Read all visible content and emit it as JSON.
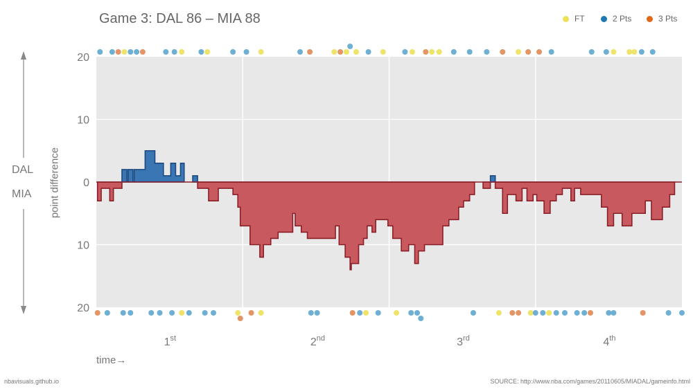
{
  "title": "Game 3: DAL 86  –  MIA 88",
  "legend": [
    {
      "label": "FT",
      "color": "#ede15a"
    },
    {
      "label": "2 Pts",
      "color": "#1f78b4"
    },
    {
      "label": "3 Pts",
      "color": "#e06a1a"
    }
  ],
  "team_top": "DAL",
  "team_bottom": "MIA",
  "ylabel": "point difference",
  "footer_left": "nbavisuals.github.io",
  "footer_right": "SOURCE: http://www.nba.com/games/20110605/MIADAL/gameinfo.html",
  "chart_data": {
    "type": "area",
    "title": "Game 3: DAL 86  –  MIA 88",
    "xlabel": "time→",
    "ylabel": "point difference",
    "quarters": [
      {
        "num": "1",
        "sup": "st"
      },
      {
        "num": "2",
        "sup": "nd"
      },
      {
        "num": "3",
        "sup": "rd"
      },
      {
        "num": "4",
        "sup": "th"
      }
    ],
    "y_ticks": [
      "20",
      "10",
      "0",
      "10",
      "20"
    ],
    "y_tick_values": [
      20,
      10,
      0,
      -10,
      -20
    ],
    "xlim": [
      0,
      48
    ],
    "ylim": [
      -20,
      20
    ],
    "grid": true,
    "colors": {
      "dal": "#3a75b4",
      "mia": "#c8595f",
      "dal_line": "#1a4a80",
      "mia_line": "#8a1f28",
      "plot_bg": "#e8e8e8"
    },
    "steps": [
      [
        0.0,
        0
      ],
      [
        0.1,
        -3
      ],
      [
        0.4,
        -1
      ],
      [
        1.1,
        -3
      ],
      [
        1.4,
        -1
      ],
      [
        2.1,
        2
      ],
      [
        2.5,
        0
      ],
      [
        2.6,
        2
      ],
      [
        3.0,
        0
      ],
      [
        3.1,
        2
      ],
      [
        4.0,
        5
      ],
      [
        4.8,
        3
      ],
      [
        5.5,
        1
      ],
      [
        6.1,
        3
      ],
      [
        6.5,
        1
      ],
      [
        6.9,
        3
      ],
      [
        7.2,
        0
      ],
      [
        7.9,
        1
      ],
      [
        8.3,
        -1
      ],
      [
        9.2,
        -3
      ],
      [
        10.0,
        -1
      ],
      [
        11.2,
        -2
      ],
      [
        11.6,
        -4
      ],
      [
        11.8,
        -7
      ],
      [
        12.6,
        -10
      ],
      [
        13.4,
        -12
      ],
      [
        13.7,
        -10
      ],
      [
        14.3,
        -9
      ],
      [
        14.9,
        -8
      ],
      [
        16.1,
        -5
      ],
      [
        16.3,
        -7
      ],
      [
        16.8,
        -8
      ],
      [
        17.3,
        -9
      ],
      [
        19.6,
        -7
      ],
      [
        19.9,
        -10
      ],
      [
        20.4,
        -12
      ],
      [
        20.8,
        -14
      ],
      [
        20.9,
        -13
      ],
      [
        21.5,
        -10
      ],
      [
        21.9,
        -9
      ],
      [
        22.2,
        -7
      ],
      [
        22.6,
        -8
      ],
      [
        22.9,
        -6
      ],
      [
        23.9,
        -7
      ],
      [
        24.3,
        -9
      ],
      [
        25.0,
        -11
      ],
      [
        25.6,
        -10
      ],
      [
        26.1,
        -13
      ],
      [
        26.4,
        -11
      ],
      [
        26.9,
        -10
      ],
      [
        28.4,
        -7
      ],
      [
        28.9,
        -6
      ],
      [
        29.7,
        -4
      ],
      [
        30.1,
        -3
      ],
      [
        30.6,
        -2
      ],
      [
        31.0,
        0
      ],
      [
        31.7,
        -1
      ],
      [
        32.3,
        1
      ],
      [
        32.7,
        -1
      ],
      [
        33.3,
        -5
      ],
      [
        33.7,
        -2
      ],
      [
        34.4,
        -3
      ],
      [
        34.9,
        -1
      ],
      [
        35.3,
        -3
      ],
      [
        35.8,
        -2
      ],
      [
        36.1,
        -3
      ],
      [
        36.7,
        -5
      ],
      [
        37.2,
        -3
      ],
      [
        37.7,
        -2
      ],
      [
        38.2,
        -1
      ],
      [
        38.9,
        -3
      ],
      [
        39.2,
        -1
      ],
      [
        39.7,
        -2
      ],
      [
        41.4,
        -4
      ],
      [
        41.9,
        -7
      ],
      [
        42.4,
        -5
      ],
      [
        43.1,
        -7
      ],
      [
        43.9,
        -5
      ],
      [
        45.0,
        -3
      ],
      [
        45.5,
        -6
      ],
      [
        46.4,
        -4
      ],
      [
        47.0,
        -2
      ],
      [
        47.4,
        0
      ],
      [
        48.0,
        -2
      ]
    ],
    "dal_scores": [
      {
        "t": 0.3,
        "pts": 2
      },
      {
        "t": 1.3,
        "pts": 2
      },
      {
        "t": 1.8,
        "pts": 3
      },
      {
        "t": 2.3,
        "pts": 1
      },
      {
        "t": 2.8,
        "pts": 2
      },
      {
        "t": 3.3,
        "pts": 2
      },
      {
        "t": 3.8,
        "pts": 3
      },
      {
        "t": 5.7,
        "pts": 2
      },
      {
        "t": 6.4,
        "pts": 2
      },
      {
        "t": 7.0,
        "pts": 1
      },
      {
        "t": 8.6,
        "pts": 2
      },
      {
        "t": 9.1,
        "pts": 1
      },
      {
        "t": 11.2,
        "pts": 2
      },
      {
        "t": 12.3,
        "pts": 2
      },
      {
        "t": 13.5,
        "pts": 1
      },
      {
        "t": 16.7,
        "pts": 2
      },
      {
        "t": 17.5,
        "pts": 3
      },
      {
        "t": 19.5,
        "pts": 1
      },
      {
        "t": 20.0,
        "pts": 3
      },
      {
        "t": 20.5,
        "pts": 1
      },
      {
        "t": 20.8,
        "pts": 2
      },
      {
        "t": 21.3,
        "pts": 1
      },
      {
        "t": 22.3,
        "pts": 2
      },
      {
        "t": 23.5,
        "pts": 1
      },
      {
        "t": 25.3,
        "pts": 2
      },
      {
        "t": 25.9,
        "pts": 1
      },
      {
        "t": 27.0,
        "pts": 3
      },
      {
        "t": 27.5,
        "pts": 1
      },
      {
        "t": 28.1,
        "pts": 1
      },
      {
        "t": 29.3,
        "pts": 2
      },
      {
        "t": 30.6,
        "pts": 2
      },
      {
        "t": 32.0,
        "pts": 2
      },
      {
        "t": 33.3,
        "pts": 3
      },
      {
        "t": 34.6,
        "pts": 1
      },
      {
        "t": 35.4,
        "pts": 3
      },
      {
        "t": 36.3,
        "pts": 3
      },
      {
        "t": 37.3,
        "pts": 2
      },
      {
        "t": 40.6,
        "pts": 2
      },
      {
        "t": 41.8,
        "pts": 2
      },
      {
        "t": 42.4,
        "pts": 1
      },
      {
        "t": 43.7,
        "pts": 1
      },
      {
        "t": 44.1,
        "pts": 1
      },
      {
        "t": 44.7,
        "pts": 2
      },
      {
        "t": 45.6,
        "pts": 2
      }
    ],
    "mia_scores": [
      {
        "t": 0.1,
        "pts": 3
      },
      {
        "t": 0.9,
        "pts": 2
      },
      {
        "t": 2.2,
        "pts": 2
      },
      {
        "t": 2.8,
        "pts": 2
      },
      {
        "t": 4.5,
        "pts": 2
      },
      {
        "t": 5.2,
        "pts": 2
      },
      {
        "t": 6.2,
        "pts": 2
      },
      {
        "t": 7.0,
        "pts": 1
      },
      {
        "t": 7.6,
        "pts": 2
      },
      {
        "t": 8.9,
        "pts": 2
      },
      {
        "t": 9.6,
        "pts": 2
      },
      {
        "t": 11.6,
        "pts": 1
      },
      {
        "t": 11.8,
        "pts": 3
      },
      {
        "t": 12.7,
        "pts": 3
      },
      {
        "t": 13.5,
        "pts": 1
      },
      {
        "t": 17.6,
        "pts": 2
      },
      {
        "t": 18.1,
        "pts": 2
      },
      {
        "t": 21.0,
        "pts": 3
      },
      {
        "t": 21.6,
        "pts": 2
      },
      {
        "t": 22.1,
        "pts": 1
      },
      {
        "t": 23.1,
        "pts": 2
      },
      {
        "t": 24.6,
        "pts": 1
      },
      {
        "t": 25.8,
        "pts": 2
      },
      {
        "t": 26.3,
        "pts": 2
      },
      {
        "t": 26.6,
        "pts": 2
      },
      {
        "t": 30.9,
        "pts": 2
      },
      {
        "t": 33.0,
        "pts": 1
      },
      {
        "t": 34.1,
        "pts": 3
      },
      {
        "t": 34.6,
        "pts": 3
      },
      {
        "t": 35.6,
        "pts": 1
      },
      {
        "t": 36.0,
        "pts": 2
      },
      {
        "t": 36.6,
        "pts": 2
      },
      {
        "t": 37.1,
        "pts": 1
      },
      {
        "t": 37.7,
        "pts": 2
      },
      {
        "t": 38.4,
        "pts": 2
      },
      {
        "t": 39.4,
        "pts": 2
      },
      {
        "t": 40.0,
        "pts": 2
      },
      {
        "t": 40.5,
        "pts": 3
      },
      {
        "t": 42.0,
        "pts": 2
      },
      {
        "t": 42.4,
        "pts": 2
      },
      {
        "t": 44.8,
        "pts": 3
      },
      {
        "t": 46.9,
        "pts": 2
      },
      {
        "t": 48.0,
        "pts": 2
      }
    ]
  }
}
